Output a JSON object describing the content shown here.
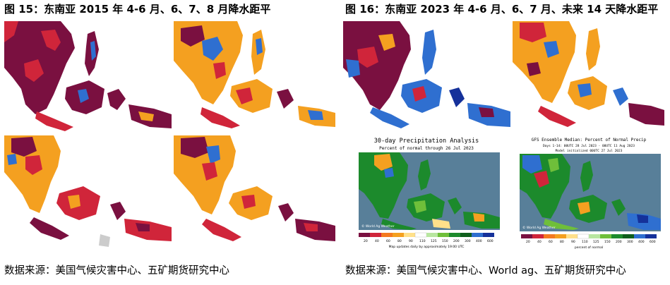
{
  "left_figure": {
    "title": "图 15：东南亚 2015 年 4-6 月、6、7、8 月降水距平",
    "source": "数据来源：美国气候灾害中心、五矿期货研究中心"
  },
  "right_figure": {
    "title": "图 16：东南亚 2023 年 4-6 月、6、7 月、未来 14 天降水距平",
    "source": "数据来源：美国气候灾害中心、World ag、五矿期货研究中心"
  },
  "worldag_panel_1": {
    "title": "30-day Precipitation Analysis",
    "subtitle": "Percent of normal through 26 Jul 2023",
    "logo": "© World Ag Weather",
    "scale_labels": [
      "20",
      "40",
      "60",
      "80",
      "90",
      "110",
      "125",
      "150",
      "200",
      "300",
      "400",
      "600"
    ],
    "footer": "Map updates daily by approximately 19:00 UTC"
  },
  "worldag_panel_2": {
    "title": "GFS Ensemble Median: Percent of Normal Precip",
    "subtitle": "Days 1-14: 00UTC 28 Jul 2023 - 00UTC 11 Aug 2023",
    "subtitle2": "Model initialized 00UTC 27 Jul 2023",
    "logo": "© World Ag Weather",
    "scale_labels": [
      "20",
      "40",
      "60",
      "80",
      "90",
      "110",
      "125",
      "150",
      "200",
      "300",
      "400",
      "600"
    ],
    "footer": "percent of normal"
  },
  "colors": {
    "dry_dark": "#7a1040",
    "dry": "#d0253a",
    "dry_light": "#f4a020",
    "neutral": "#ffe08a",
    "wet_light": "#8fc7ea",
    "wet": "#2f6fd0",
    "wet_dark": "#15319a",
    "ocean_worldag": "#587f99",
    "land_green": "#1c8a2c"
  }
}
